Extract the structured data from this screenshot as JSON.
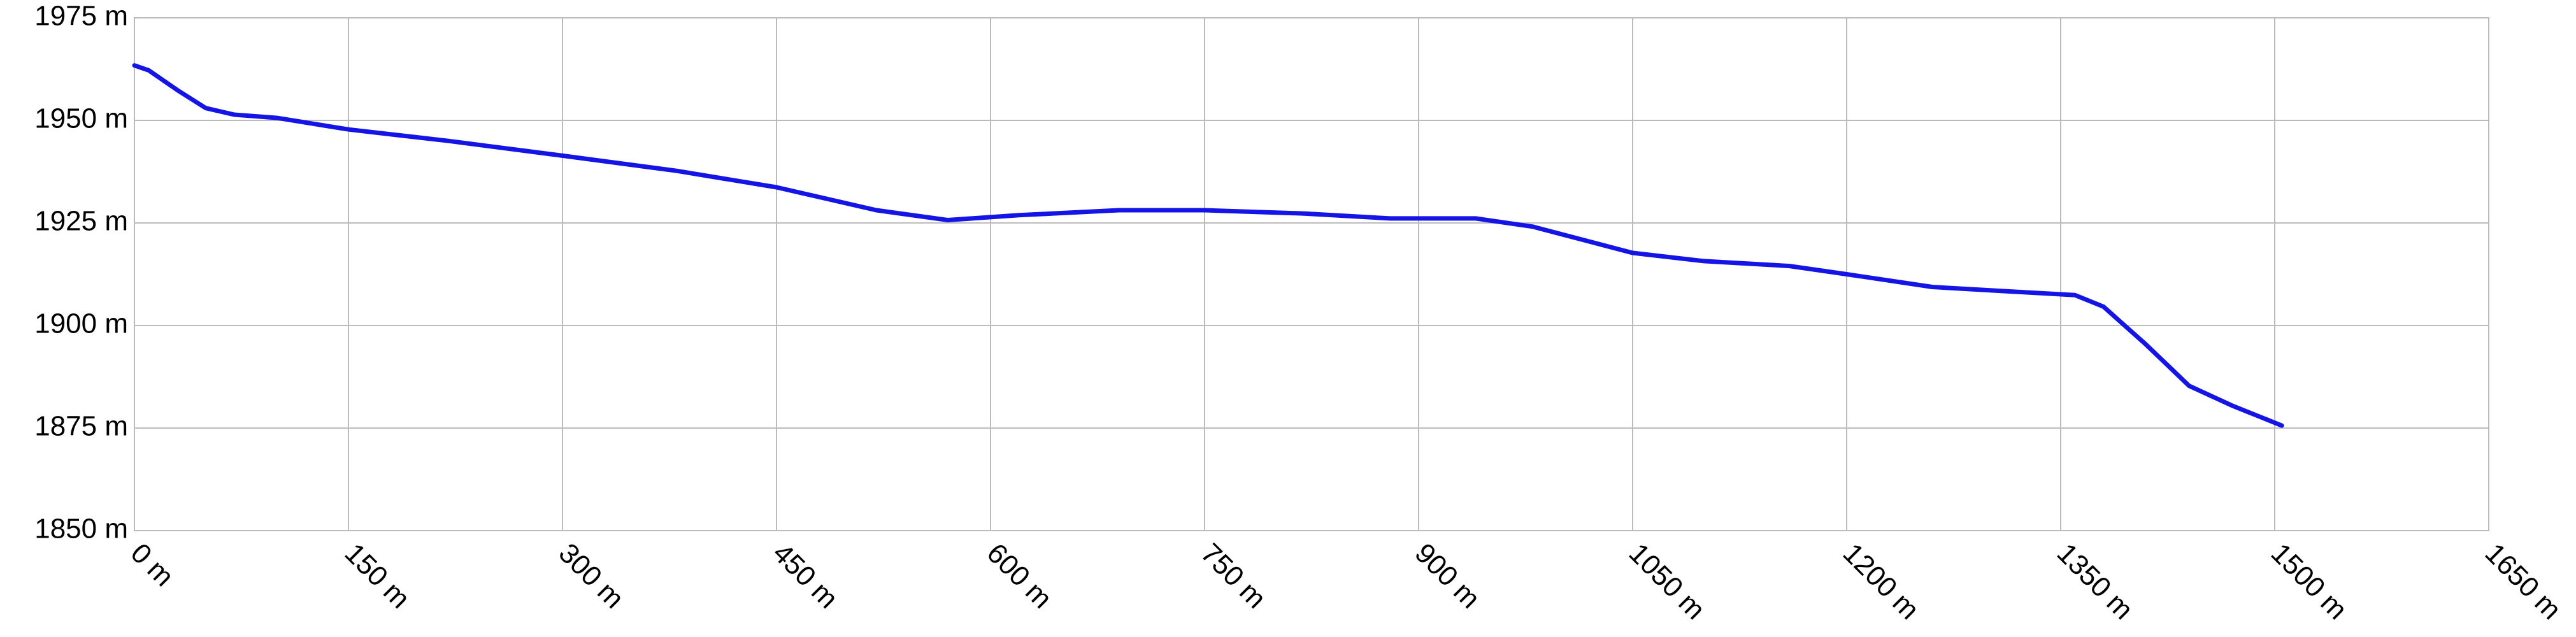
{
  "chart_data": {
    "type": "line",
    "color": "#1414e6",
    "grid": true,
    "x": [
      0,
      10,
      30,
      50,
      70,
      100,
      150,
      220,
      300,
      380,
      450,
      520,
      570,
      620,
      690,
      750,
      820,
      880,
      940,
      980,
      1050,
      1100,
      1160,
      1200,
      1260,
      1320,
      1360,
      1380,
      1410,
      1440,
      1470,
      1505
    ],
    "values": [
      1963.4,
      1962.2,
      1957.4,
      1953,
      1951.4,
      1950.6,
      1947.8,
      1945,
      1941.4,
      1937.7,
      1933.7,
      1928.1,
      1925.7,
      1926.9,
      1928.1,
      1928.1,
      1927.3,
      1926.1,
      1926.1,
      1924.1,
      1917.7,
      1915.7,
      1914.5,
      1912.5,
      1909.4,
      1908.2,
      1907.4,
      1904.6,
      1895.3,
      1885.3,
      1880.5,
      1875.6
    ],
    "xlim": [
      0,
      1650
    ],
    "xticks": [
      {
        "value": 0,
        "label": "0 m"
      },
      {
        "value": 150,
        "label": "150 m"
      },
      {
        "value": 300,
        "label": "300 m"
      },
      {
        "value": 450,
        "label": "450 m"
      },
      {
        "value": 600,
        "label": "600 m"
      },
      {
        "value": 750,
        "label": "750 m"
      },
      {
        "value": 900,
        "label": "900 m"
      },
      {
        "value": 1050,
        "label": "1050 m"
      },
      {
        "value": 1200,
        "label": "1200 m"
      },
      {
        "value": 1350,
        "label": "1350 m"
      },
      {
        "value": 1500,
        "label": "1500 m"
      },
      {
        "value": 1650,
        "label": "1650 m"
      }
    ],
    "ylim": [
      1850,
      1975
    ],
    "yticks": [
      {
        "value": 1850,
        "label": "1850 m"
      },
      {
        "value": 1875,
        "label": "1875 m"
      },
      {
        "value": 1900,
        "label": "1900 m"
      },
      {
        "value": 1925,
        "label": "1925 m"
      },
      {
        "value": 1950,
        "label": "1950 m"
      },
      {
        "value": 1975,
        "label": "1975 m"
      }
    ]
  }
}
